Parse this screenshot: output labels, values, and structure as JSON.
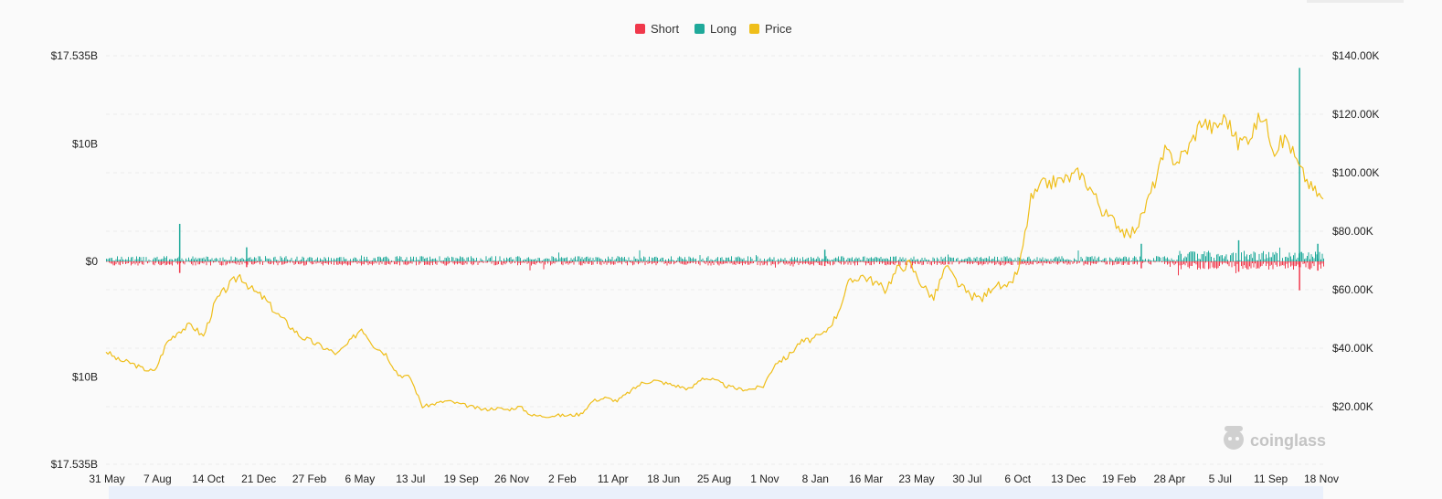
{
  "chart_data": {
    "type": "bar",
    "series": [
      {
        "name": "Short",
        "color": "#f0384b",
        "kind": "bar",
        "axis": "left",
        "direction": "down"
      },
      {
        "name": "Long",
        "color": "#1fa99a",
        "kind": "bar",
        "axis": "left",
        "direction": "up"
      },
      {
        "name": "Price",
        "color": "#efbe19",
        "kind": "line",
        "axis": "right"
      }
    ],
    "x_tick_labels": [
      "31 May",
      "7 Aug",
      "14 Oct",
      "21 Dec",
      "27 Feb",
      "6 May",
      "13 Jul",
      "19 Sep",
      "26 Nov",
      "2 Feb",
      "11 Apr",
      "18 Jun",
      "25 Aug",
      "1 Nov",
      "8 Jan",
      "16 Mar",
      "23 May",
      "30 Jul",
      "6 Oct",
      "13 Dec",
      "19 Feb",
      "28 Apr",
      "5 Jul",
      "11 Sep",
      "18 Nov"
    ],
    "y_left": {
      "tick_labels": [
        "$17.535B",
        "$10B",
        "$0",
        "$10B",
        "$17.535B"
      ],
      "tick_values": [
        17.535,
        10,
        0,
        -10,
        -17.535
      ],
      "range": [
        -17.535,
        17.535
      ],
      "unit": "billion USD"
    },
    "y_right": {
      "tick_labels": [
        "$140.00K",
        "$120.00K",
        "$100.00K",
        "$80.00K",
        "$60.00K",
        "$40.00K",
        "$20.00K"
      ],
      "tick_values": [
        140,
        120,
        100,
        80,
        60,
        40,
        20
      ],
      "range": [
        10,
        140
      ],
      "unit": "thousand USD"
    },
    "price_points": [
      [
        0,
        39
      ],
      [
        1,
        36
      ],
      [
        2,
        35
      ],
      [
        3,
        33
      ],
      [
        4,
        32
      ],
      [
        5,
        42
      ],
      [
        6,
        46
      ],
      [
        7,
        48
      ],
      [
        8,
        44
      ],
      [
        9,
        56
      ],
      [
        10,
        61
      ],
      [
        11,
        65
      ],
      [
        12,
        60
      ],
      [
        13,
        57
      ],
      [
        14,
        52
      ],
      [
        15,
        48
      ],
      [
        16,
        44
      ],
      [
        17,
        42
      ],
      [
        18,
        40
      ],
      [
        19,
        38
      ],
      [
        20,
        42
      ],
      [
        21,
        47
      ],
      [
        22,
        41
      ],
      [
        23,
        38
      ],
      [
        24,
        31
      ],
      [
        25,
        30
      ],
      [
        26,
        20
      ],
      [
        27,
        21
      ],
      [
        28,
        22
      ],
      [
        29,
        21
      ],
      [
        30,
        20
      ],
      [
        31,
        19
      ],
      [
        32,
        19.5
      ],
      [
        33,
        19
      ],
      [
        34,
        20
      ],
      [
        35,
        17
      ],
      [
        36,
        16.8
      ],
      [
        37,
        17
      ],
      [
        38,
        17
      ],
      [
        39,
        17.5
      ],
      [
        40,
        22
      ],
      [
        41,
        23
      ],
      [
        42,
        22
      ],
      [
        43,
        25
      ],
      [
        44,
        28
      ],
      [
        45,
        29
      ],
      [
        46,
        28
      ],
      [
        47,
        27
      ],
      [
        48,
        26
      ],
      [
        49,
        30
      ],
      [
        50,
        29
      ],
      [
        51,
        27
      ],
      [
        52,
        26
      ],
      [
        53,
        26
      ],
      [
        54,
        27
      ],
      [
        55,
        35
      ],
      [
        56,
        37
      ],
      [
        57,
        42
      ],
      [
        58,
        43
      ],
      [
        59,
        45
      ],
      [
        60,
        51
      ],
      [
        61,
        62
      ],
      [
        62,
        65
      ],
      [
        63,
        63
      ],
      [
        64,
        60
      ],
      [
        65,
        67
      ],
      [
        66,
        69
      ],
      [
        67,
        62
      ],
      [
        68,
        57
      ],
      [
        69,
        68
      ],
      [
        70,
        62
      ],
      [
        71,
        58
      ],
      [
        72,
        57
      ],
      [
        73,
        62
      ],
      [
        74,
        60
      ],
      [
        75,
        67
      ],
      [
        76,
        91
      ],
      [
        77,
        96
      ],
      [
        78,
        97
      ],
      [
        79,
        98
      ],
      [
        80,
        100
      ],
      [
        81,
        94
      ],
      [
        82,
        86
      ],
      [
        83,
        83
      ],
      [
        84,
        78
      ],
      [
        85,
        84
      ],
      [
        86,
        95
      ],
      [
        87,
        107
      ],
      [
        88,
        104
      ],
      [
        89,
        109
      ],
      [
        90,
        118
      ],
      [
        91,
        115
      ],
      [
        92,
        119
      ],
      [
        93,
        110
      ],
      [
        94,
        113
      ],
      [
        95,
        120
      ],
      [
        96,
        108
      ],
      [
        97,
        112
      ],
      [
        98,
        102
      ],
      [
        99,
        95
      ],
      [
        100,
        91
      ]
    ],
    "bar_spikes": [
      {
        "x": 6,
        "long": 3.2,
        "short": -1
      },
      {
        "x": 11.5,
        "long": 1.2,
        "short": -0.5
      },
      {
        "x": 59,
        "long": 1,
        "short": -0.4
      },
      {
        "x": 85,
        "long": 1.5,
        "short": -0.6
      },
      {
        "x": 93,
        "long": 1.8,
        "short": -0.9
      },
      {
        "x": 98,
        "long": 16.5,
        "short": -2.5
      },
      {
        "x": 99.5,
        "long": 1.5,
        "short": -0.8
      }
    ],
    "legend_position": "top-center",
    "grid": "horizontal dashed",
    "watermark": "coinglass"
  }
}
